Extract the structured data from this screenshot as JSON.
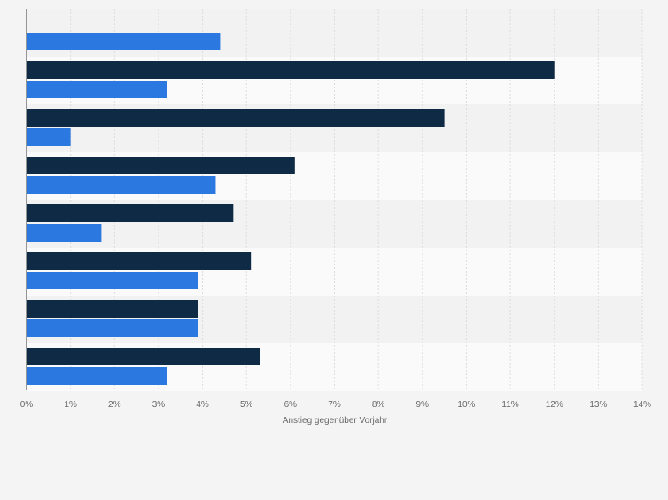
{
  "colors": {
    "page_bg": "#f4f4f4",
    "band_dark": "#f2f2f2",
    "band_light": "#fafafa",
    "grid": "#dcdcdc",
    "axis": "#333333",
    "tick_text": "#666666",
    "series_dark": "#0f2a45",
    "series_blue": "#2b78e0"
  },
  "chart_data": {
    "type": "bar",
    "orientation": "horizontal",
    "title": "",
    "xlabel": "Anstieg gegenüber Vorjahr",
    "ylabel": "",
    "xlim": [
      0,
      14
    ],
    "xticks": [
      0,
      1,
      2,
      3,
      4,
      5,
      6,
      7,
      8,
      9,
      10,
      11,
      12,
      13,
      14
    ],
    "tick_labels": [
      "0%",
      "1%",
      "2%",
      "3%",
      "4%",
      "5%",
      "6%",
      "7%",
      "8%",
      "9%",
      "10%",
      "11%",
      "12%",
      "13%",
      "14%"
    ],
    "categories": [
      "",
      "",
      "",
      "",
      "",
      "",
      "",
      ""
    ],
    "grid": true,
    "legend": "none",
    "series": [
      {
        "color": "#0f2a45",
        "values": [
          null,
          12,
          9.5,
          6.1,
          4.7,
          5.1,
          3.9,
          5.3
        ]
      },
      {
        "color": "#2b78e0",
        "values": [
          4.4,
          3.2,
          1.0,
          4.3,
          1.7,
          3.9,
          3.9,
          3.2
        ]
      }
    ]
  }
}
